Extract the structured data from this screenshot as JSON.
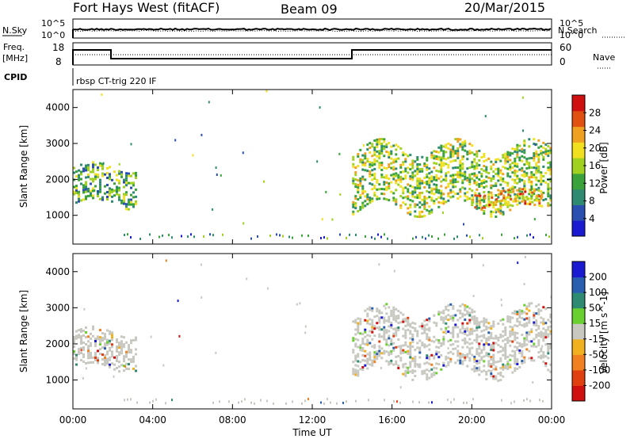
{
  "header": {
    "station": "Fort Hays West (fitACF)",
    "beam": "Beam 09",
    "date": "20/Mar/2015"
  },
  "noise_panel": {
    "left_label": "N.Sky",
    "right_label": "N.Search",
    "ytick_top": "10^5",
    "ytick_bottom": "10^0"
  },
  "freq_panel": {
    "left_label_1": "Freq.",
    "left_label_2": "[MHz]",
    "right_label": "Nave",
    "yticks_left": [
      "18",
      "8"
    ],
    "yticks_right": [
      "60",
      "0"
    ]
  },
  "cpid": {
    "label": "CPID",
    "program": "rbsp CT-trig 220 IF"
  },
  "colors": {
    "power_scale": [
      "#1a1ad0",
      "#2a4fb0",
      "#2e8a70",
      "#3aa23a",
      "#a0d020",
      "#f0e020",
      "#f0a020",
      "#e05010",
      "#d01010"
    ],
    "velocity_scale": [
      "#1a1ad0",
      "#2a5fb0",
      "#2e8a70",
      "#6ad030",
      "#c8c8c0",
      "#f0b020",
      "#f08020",
      "#e04010",
      "#d01010"
    ],
    "ground_scatter": "#c8c8c0"
  },
  "chart_data": [
    {
      "type": "heatmap",
      "name": "power",
      "ylabel": "Slant Range [km]",
      "yticks": [
        "1000",
        "2000",
        "3000",
        "4000"
      ],
      "ylim": [
        200,
        4500
      ],
      "xlim": [
        "00:00",
        "24:00"
      ],
      "colorbar_label": "Power [dB]",
      "colorbar_ticks": [
        "4",
        "8",
        "12",
        "16",
        "20",
        "24",
        "28"
      ],
      "colorbar_range": [
        0,
        30
      ],
      "regions": [
        {
          "t0": 0.0,
          "t1": 3.2,
          "r_lo": 1300,
          "r_hi": 2350,
          "level": 10
        },
        {
          "t0": 14.0,
          "t1": 24.0,
          "r_lo": 1200,
          "r_hi": 2900,
          "level": 14
        },
        {
          "t0": 20.0,
          "t1": 23.5,
          "r_lo": 1300,
          "r_hi": 1700,
          "level": 24
        }
      ]
    },
    {
      "type": "heatmap",
      "name": "velocity",
      "ylabel": "Slant Range [km]",
      "yticks": [
        "1000",
        "2000",
        "3000",
        "4000"
      ],
      "ylim": [
        200,
        4500
      ],
      "xlim": [
        "00:00",
        "24:00"
      ],
      "colorbar_label": "Velocity [m s^-1]",
      "colorbar_ticks": [
        "200",
        "100",
        "50",
        "15",
        "-15",
        "-50",
        "-100",
        "-200"
      ],
      "colorbar_range": [
        -250,
        250
      ],
      "regions": [
        {
          "t0": 0.0,
          "t1": 3.2,
          "r_lo": 1300,
          "r_hi": 2350,
          "level": 0
        },
        {
          "t0": 14.0,
          "t1": 24.0,
          "r_lo": 1200,
          "r_hi": 2900,
          "level": 0
        }
      ]
    }
  ],
  "xaxis": {
    "ticks": [
      "00:00",
      "04:00",
      "08:00",
      "12:00",
      "16:00",
      "20:00",
      "00:00"
    ],
    "label": "Time UT"
  }
}
